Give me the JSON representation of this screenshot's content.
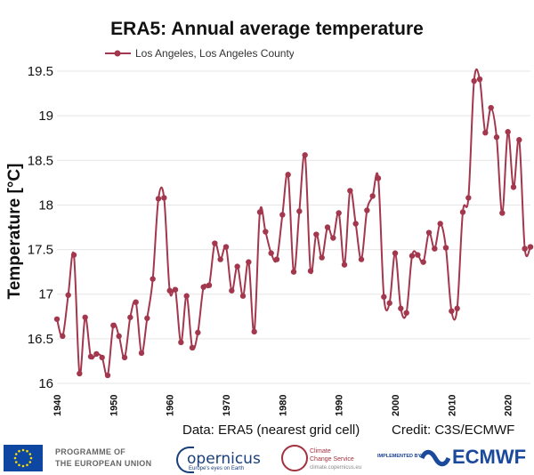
{
  "chart_data": {
    "type": "line",
    "title": "ERA5: Annual average temperature",
    "ylabel": "Temperature [°C]",
    "xlabel": "",
    "ylim": [
      15.95,
      19.6
    ],
    "xlim": [
      1940,
      2024
    ],
    "yticks": [
      "16",
      "16.5",
      "17",
      "17.5",
      "18",
      "18.5",
      "19",
      "19.5"
    ],
    "xticks": [
      "1940",
      "1950",
      "1960",
      "1970",
      "1980",
      "1990",
      "2000",
      "2010",
      "2020"
    ],
    "grid": true,
    "legend_position": "top-left",
    "series": [
      {
        "name": "Los Angeles, Los Angeles County",
        "color": "#a3374d",
        "x": [
          1940,
          1941,
          1942,
          1943,
          1944,
          1945,
          1946,
          1947,
          1948,
          1949,
          1950,
          1951,
          1952,
          1953,
          1954,
          1955,
          1956,
          1957,
          1958,
          1959,
          1960,
          1961,
          1962,
          1963,
          1964,
          1965,
          1966,
          1967,
          1968,
          1969,
          1970,
          1971,
          1972,
          1973,
          1974,
          1975,
          1976,
          1977,
          1978,
          1979,
          1980,
          1981,
          1982,
          1983,
          1984,
          1985,
          1986,
          1987,
          1988,
          1989,
          1990,
          1991,
          1992,
          1993,
          1994,
          1995,
          1996,
          1997,
          1998,
          1999,
          2000,
          2001,
          2002,
          2003,
          2004,
          2005,
          2006,
          2007,
          2008,
          2009,
          2010,
          2011,
          2012,
          2013,
          2014,
          2015,
          2016,
          2017,
          2018,
          2019,
          2020,
          2021,
          2022,
          2023,
          2024
        ],
        "values": [
          16.72,
          16.53,
          16.99,
          17.44,
          16.11,
          16.74,
          16.3,
          16.33,
          16.29,
          16.09,
          16.65,
          16.53,
          16.29,
          16.74,
          16.91,
          16.34,
          16.73,
          17.17,
          18.07,
          18.08,
          17.04,
          17.05,
          16.46,
          16.98,
          16.4,
          16.57,
          17.08,
          17.1,
          17.57,
          17.39,
          17.53,
          17.04,
          17.31,
          16.98,
          17.36,
          16.58,
          17.92,
          17.7,
          17.46,
          17.39,
          17.89,
          18.34,
          17.25,
          17.93,
          18.56,
          17.26,
          17.67,
          17.41,
          17.75,
          17.63,
          17.91,
          17.33,
          18.16,
          17.79,
          17.39,
          17.94,
          18.1,
          18.3,
          16.97,
          16.9,
          17.46,
          16.84,
          16.79,
          17.43,
          17.44,
          17.36,
          17.69,
          17.51,
          17.79,
          17.52,
          16.81,
          16.84,
          17.92,
          18.08,
          19.39,
          19.41,
          18.81,
          19.09,
          18.76,
          17.91,
          18.82,
          18.2,
          18.73,
          17.51,
          17.53
        ]
      }
    ]
  },
  "footer": {
    "data_credit": "Data: ERA5 (nearest grid cell)",
    "credit": "Credit: C3S/ECMWF"
  },
  "logos": {
    "programme_line1": "PROGRAMME OF",
    "programme_line2": "THE EUROPEAN UNION",
    "copernicus_word": "opernicus",
    "copernicus_sub": "Europe's eyes on Earth",
    "c3s_line1": "Climate",
    "c3s_line2": "Change Service",
    "c3s_url": "climate.copernicus.eu",
    "implemented_by": "IMPLEMENTED BY",
    "ecmwf_word": "ECMWF",
    "eu_color": "#0e47a1",
    "ecmwf_color": "#1b4a9c"
  }
}
